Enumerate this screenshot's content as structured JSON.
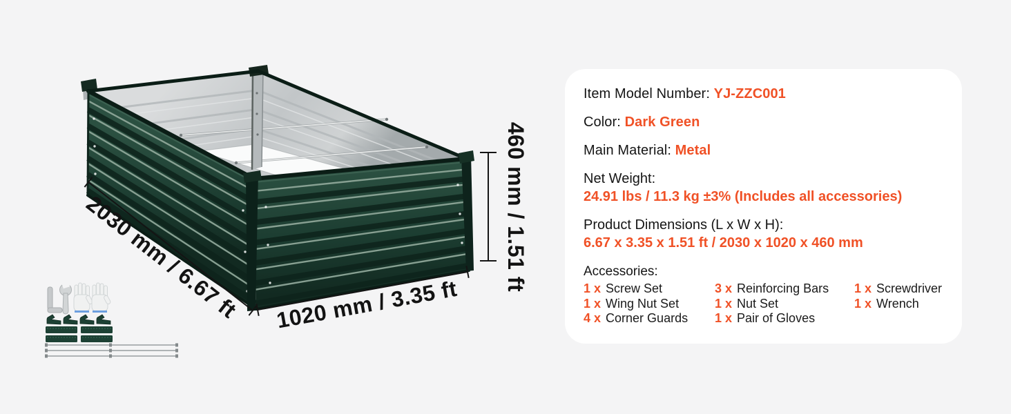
{
  "colors": {
    "accent": "#f05126",
    "canvas_bg": "#f4f4f5",
    "panel_bg": "#ffffff",
    "bed_green_dark": "#13291f",
    "bed_green_mid": "#1e4033",
    "bed_silver": "#c2c6c8",
    "text": "#151515"
  },
  "panel": {
    "rows": [
      {
        "label": "Item Model Number: ",
        "value": "YJ-ZZC001"
      },
      {
        "label": "Color: ",
        "value": "Dark Green"
      },
      {
        "label": "Main Material: ",
        "value": "Metal"
      },
      {
        "label": "Net Weight:",
        "value": "24.91 lbs / 11.3 kg ±3% (Includes all accessories)"
      },
      {
        "label": "Product Dimensions (L x W x H):",
        "value": "6.67 x 3.35 x 1.51 ft / 2030 x 1020 x 460 mm"
      }
    ],
    "accessories": {
      "title": "Accessories:",
      "items": [
        {
          "qty": "1 x",
          "name": "Screw Set"
        },
        {
          "qty": "3 x",
          "name": "Reinforcing Bars"
        },
        {
          "qty": "1 x",
          "name": "Screwdriver"
        },
        {
          "qty": "1 x",
          "name": "Wing Nut Set"
        },
        {
          "qty": "1 x",
          "name": "Nut Set"
        },
        {
          "qty": "1 x",
          "name": "Wrench"
        },
        {
          "qty": "4 x",
          "name": "Corner Guards"
        },
        {
          "qty": "1 x",
          "name": "Pair of Gloves"
        }
      ]
    }
  },
  "dimensions": {
    "length": "2030 mm / 6.67 ft",
    "width": "1020 mm / 3.35 ft",
    "height": "460 mm / 1.51 ft"
  },
  "illustration": {
    "product": "dark green metal raised garden bed",
    "kit_items": [
      "hex key",
      "wrench",
      "pair of gloves",
      "corner guards",
      "screw strips",
      "reinforcing bars"
    ]
  }
}
